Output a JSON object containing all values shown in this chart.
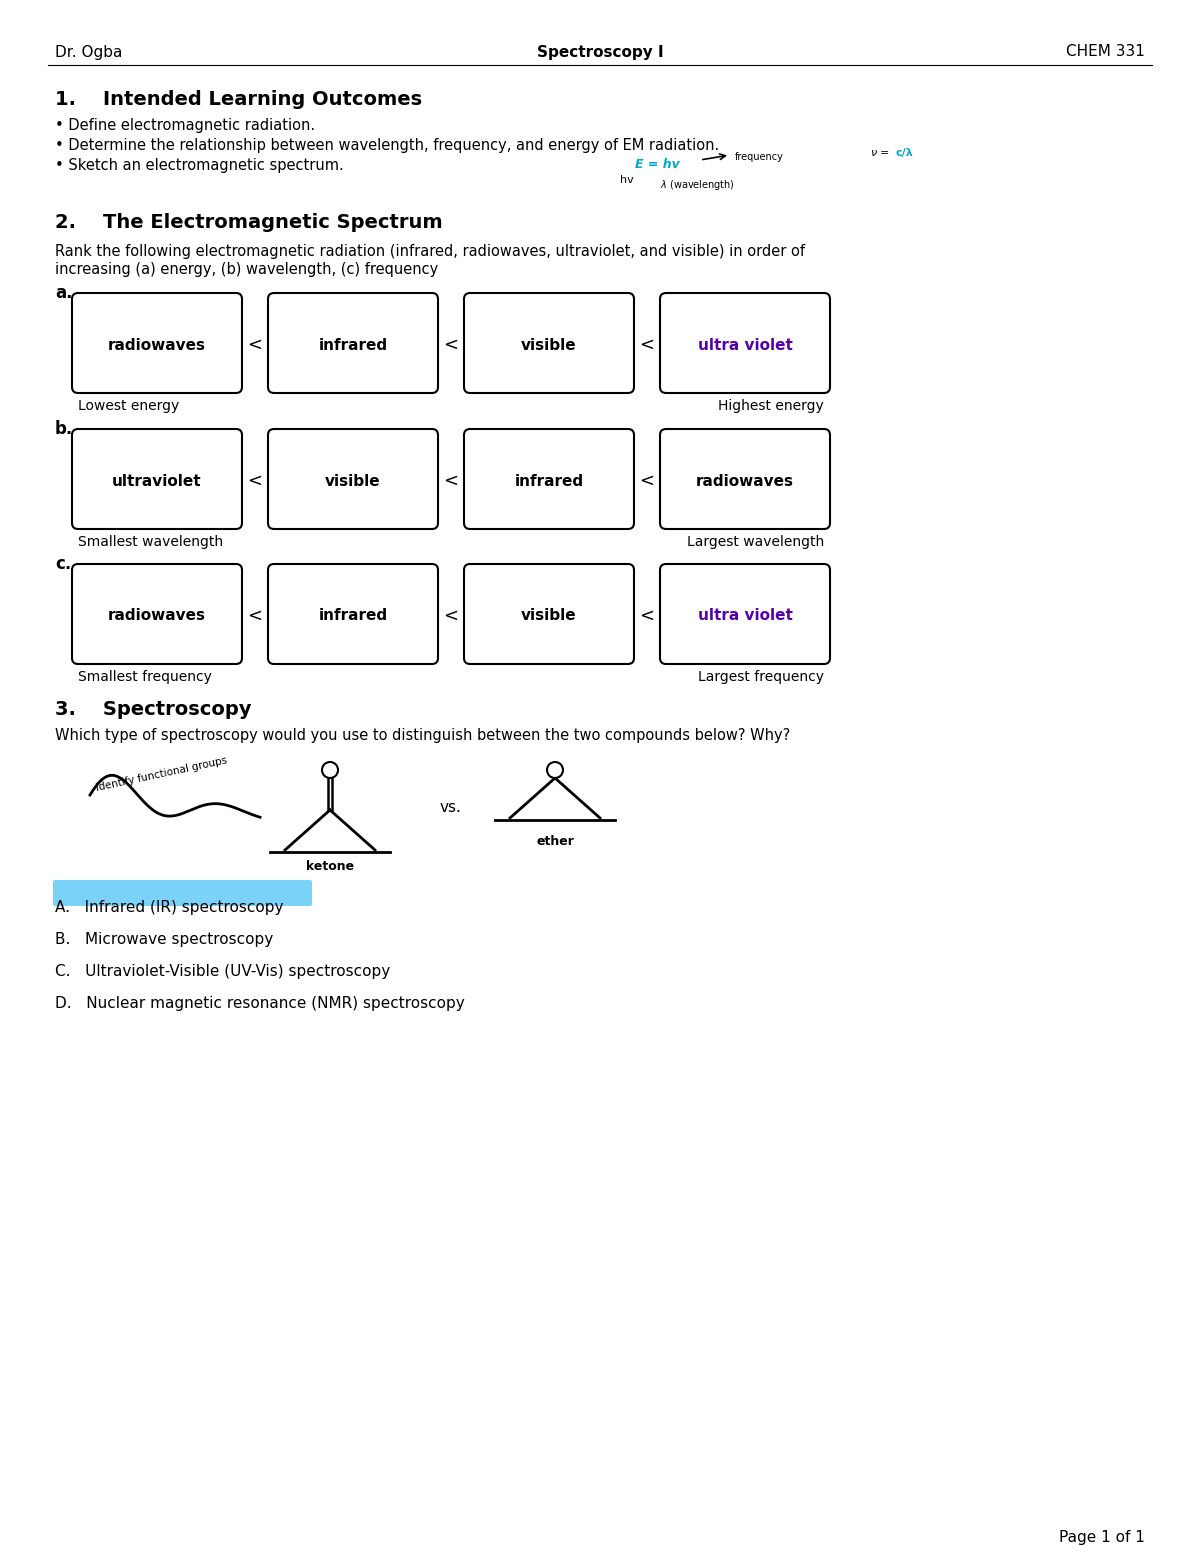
{
  "header_left": "Dr. Ogba",
  "header_center": "Spectroscopy I",
  "header_right": "CHEM 331",
  "section1_title": "1.    Intended Learning Outcomes",
  "section1_bullets": [
    "Define electromagnetic radiation.",
    "Determine the relationship between wavelength, frequency, and energy of EM radiation.",
    "Sketch an electromagnetic spectrum."
  ],
  "section2_title": "2.    The Electromagnetic Spectrum",
  "section2_line1": "Rank the following electromagnetic radiation (infrared, radiowaves, ultraviolet, and visible) in order of",
  "section2_line2": "increasing (a) energy, (b) wavelength, (c) frequency",
  "row_a_label": "a.",
  "row_a_boxes": [
    "radiowaves",
    "infrared",
    "visible",
    "ultra violet"
  ],
  "row_a_colors": [
    "#000000",
    "#000000",
    "#000000",
    "#5500aa"
  ],
  "row_a_left_label": "Lowest energy",
  "row_a_right_label": "Highest energy",
  "row_b_label": "b.",
  "row_b_boxes": [
    "ultraviolet",
    "visible",
    "infrared",
    "radiowaves"
  ],
  "row_b_colors": [
    "#000000",
    "#000000",
    "#000000",
    "#000000"
  ],
  "row_b_left_label": "Smallest wavelength",
  "row_b_right_label": "Largest wavelength",
  "row_c_label": "c.",
  "row_c_boxes": [
    "radiowaves",
    "infrared",
    "visible",
    "ultra violet"
  ],
  "row_c_colors": [
    "#000000",
    "#000000",
    "#000000",
    "#5500aa"
  ],
  "row_c_left_label": "Smallest frequency",
  "row_c_right_label": "Largest frequency",
  "section3_title": "3.    Spectroscopy",
  "section3_body": "Which type of spectroscopy would you use to distinguish between the two compounds below? Why?",
  "answer_A": "A.   Infrared (IR) spectroscopy",
  "answer_B": "B.   Microwave spectroscopy",
  "answer_C": "C.   Ultraviolet-Visible (UV-Vis) spectroscopy",
  "answer_D": "D.   Nuclear magnetic resonance (NMR) spectroscopy",
  "answer_A_highlight": "#4fc3f7",
  "page_footer": "Page 1 of 1",
  "bg_color": "#ffffff"
}
